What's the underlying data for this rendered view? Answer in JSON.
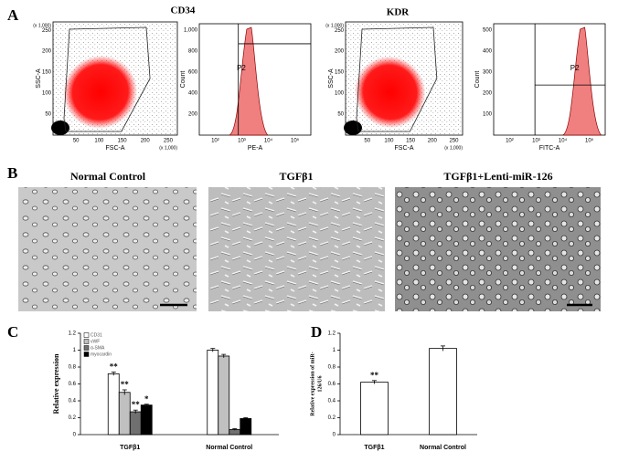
{
  "panel_labels": [
    "A",
    "B",
    "C",
    "D"
  ],
  "flow_cytometry": [
    {
      "title": "CD34",
      "scatter": {
        "y_label": "SSC-A",
        "x_label": "FSC-A",
        "y_unit": "(x 1,000)",
        "x_unit": "(x 1,000)",
        "x_ticks": [
          "50",
          "100",
          "150",
          "200",
          "250"
        ],
        "y_ticks": [
          "50",
          "100",
          "150",
          "200",
          "250"
        ]
      },
      "histogram": {
        "y_label": "Count",
        "x_label": "PE-A",
        "gate": "P2",
        "y_ticks": [
          "200",
          "400",
          "600",
          "800",
          "1,000"
        ],
        "x_ticks": [
          "10²",
          "10³",
          "10⁴",
          "10⁵"
        ]
      }
    },
    {
      "title": "KDR",
      "scatter": {
        "y_label": "SSC-A",
        "x_label": "FSC-A",
        "y_unit": "(x 1,000)",
        "x_unit": "(x 1,000)",
        "x_ticks": [
          "50",
          "100",
          "150",
          "200",
          "250"
        ],
        "y_ticks": [
          "50",
          "100",
          "150",
          "200",
          "250"
        ]
      },
      "histogram": {
        "y_label": "Count",
        "x_label": "FITC-A",
        "gate": "P2",
        "y_ticks": [
          "100",
          "200",
          "300",
          "400",
          "500"
        ],
        "x_ticks": [
          "10²",
          "10³",
          "10⁴",
          "10⁵"
        ]
      }
    }
  ],
  "micrographs": [
    {
      "caption": "Normal Control"
    },
    {
      "caption": "TGFβ1"
    },
    {
      "caption": "TGFβ1+Lenti-miR-126"
    }
  ],
  "chart_data": [
    {
      "type": "grouped_bar",
      "y_label": "Relative expression",
      "categories": [
        "TGFβ1",
        "Normal Control"
      ],
      "series": [
        {
          "name": "CD31",
          "color": "#ffffff",
          "values": [
            0.72,
            1.0
          ],
          "errors": [
            0.02,
            0.02
          ]
        },
        {
          "name": "vWF",
          "color": "#c0c0c0",
          "values": [
            0.5,
            0.93
          ],
          "errors": [
            0.03,
            0.02
          ]
        },
        {
          "name": "α-SMA",
          "color": "#707070",
          "values": [
            0.27,
            0.06
          ],
          "errors": [
            0.02,
            0.01
          ]
        },
        {
          "name": "myocardin",
          "color": "#000000",
          "values": [
            0.35,
            0.19
          ],
          "errors": [
            0.01,
            0.01
          ]
        }
      ],
      "annotations": [
        "**",
        "**",
        "**",
        "*"
      ],
      "ylim": [
        0,
        1.2
      ],
      "yticks": [
        0,
        0.2,
        0.4,
        0.6,
        0.8,
        1,
        1.2
      ],
      "legend": "top-left"
    },
    {
      "type": "bar",
      "y_label": [
        "Relative expression of miR-",
        "126/U6"
      ],
      "categories": [
        "TGFβ1",
        "Normal Control"
      ],
      "values": [
        0.62,
        1.02
      ],
      "errors": [
        0.02,
        0.03
      ],
      "color": "#ffffff",
      "annotations": [
        "**"
      ],
      "ylim": [
        0,
        1.2
      ],
      "yticks": [
        0,
        0.2,
        0.4,
        0.6,
        0.8,
        1,
        1.2
      ]
    }
  ]
}
